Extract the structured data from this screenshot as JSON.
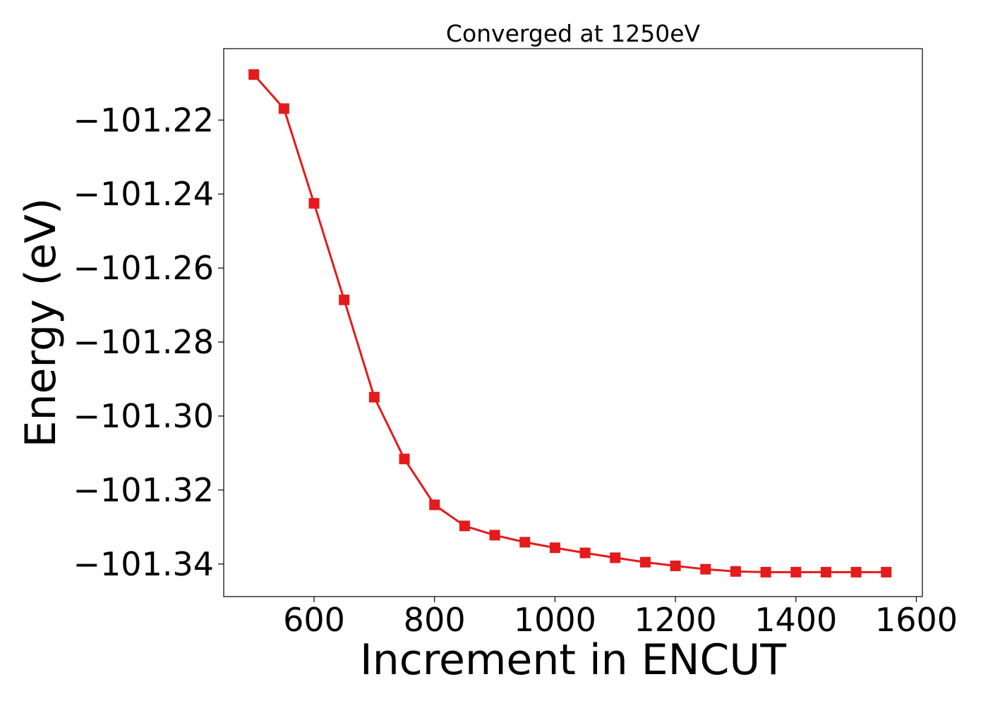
{
  "chart_data": {
    "type": "line",
    "title": "Converged at 1250eV",
    "xlabel": "Increment in ENCUT",
    "ylabel": "Energy (eV)",
    "xlim": [
      450,
      1610
    ],
    "ylim": [
      -101.3488,
      -101.2007
    ],
    "x_ticks": [
      600,
      800,
      1000,
      1200,
      1400,
      1600
    ],
    "y_ticks": [
      -101.22,
      -101.24,
      -101.26,
      -101.28,
      -101.3,
      -101.32,
      -101.34
    ],
    "y_tick_labels": [
      "−101.22",
      "−101.24",
      "−101.26",
      "−101.28",
      "−101.30",
      "−101.32",
      "−101.34"
    ],
    "grid": false,
    "legend": "none",
    "marker": "square",
    "series": [
      {
        "color": "#e41a1c",
        "x": [
          500,
          550,
          600,
          650,
          700,
          750,
          800,
          850,
          900,
          950,
          1000,
          1050,
          1100,
          1150,
          1200,
          1250,
          1300,
          1350,
          1400,
          1450,
          1500,
          1550
        ],
        "y": [
          -101.2077,
          -101.2169,
          -101.2425,
          -101.2686,
          -101.2949,
          -101.3116,
          -101.324,
          -101.3297,
          -101.3322,
          -101.3341,
          -101.3356,
          -101.337,
          -101.3383,
          -101.3395,
          -101.3405,
          -101.3414,
          -101.342,
          -101.3422,
          -101.3422,
          -101.3422,
          -101.3422,
          -101.3422
        ]
      }
    ]
  }
}
